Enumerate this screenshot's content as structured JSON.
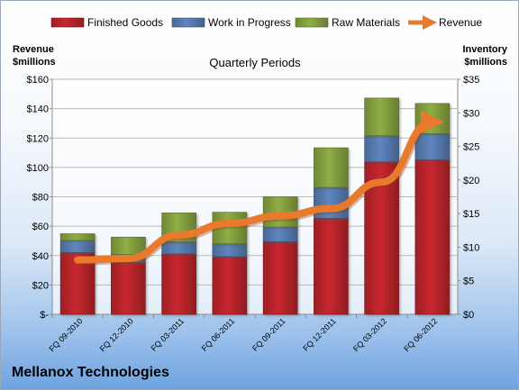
{
  "chart_data": {
    "type": "bar",
    "title": "Quarterly Periods",
    "company": "Mellanox Technologies",
    "categories": [
      "FQ 09-2010",
      "FQ 12-2010",
      "FQ 03-2011",
      "FQ 06-2011",
      "FQ 09-2011",
      "FQ 12-2011",
      "FQ 03-2012",
      "FQ 06-2012"
    ],
    "series": [
      {
        "name": "Finished Goods",
        "color": "#c8282e",
        "axis": "right",
        "values": [
          9.2,
          7.7,
          9.0,
          8.6,
          10.8,
          14.3,
          22.7,
          23.0
        ]
      },
      {
        "name": "Work in Progress",
        "color": "#5e86bf",
        "axis": "right",
        "values": [
          1.8,
          1.2,
          1.8,
          1.9,
          2.2,
          4.6,
          3.9,
          3.9
        ]
      },
      {
        "name": "Raw Materials",
        "color": "#8fae45",
        "axis": "right",
        "values": [
          1.0,
          2.6,
          4.3,
          4.7,
          4.5,
          5.9,
          5.6,
          4.5
        ]
      },
      {
        "name": "Revenue",
        "color": "#e8792d",
        "axis": "left",
        "type": "line",
        "values": [
          37,
          38,
          54,
          62,
          67,
          72,
          90,
          131
        ]
      }
    ],
    "left_axis": {
      "label": "Revenue\n$millions",
      "min": 0,
      "max": 160,
      "step": 20,
      "tick_labels": [
        "$-",
        "$20",
        "$40",
        "$60",
        "$80",
        "$100",
        "$120",
        "$140",
        "$160"
      ]
    },
    "right_axis": {
      "label": "Inventory\n$millions",
      "min": 0,
      "max": 35,
      "step": 5,
      "tick_labels": [
        "$0",
        "$5",
        "$10",
        "$15",
        "$20",
        "$25",
        "$30",
        "$35"
      ]
    },
    "legend_position": "top",
    "grid": true
  }
}
